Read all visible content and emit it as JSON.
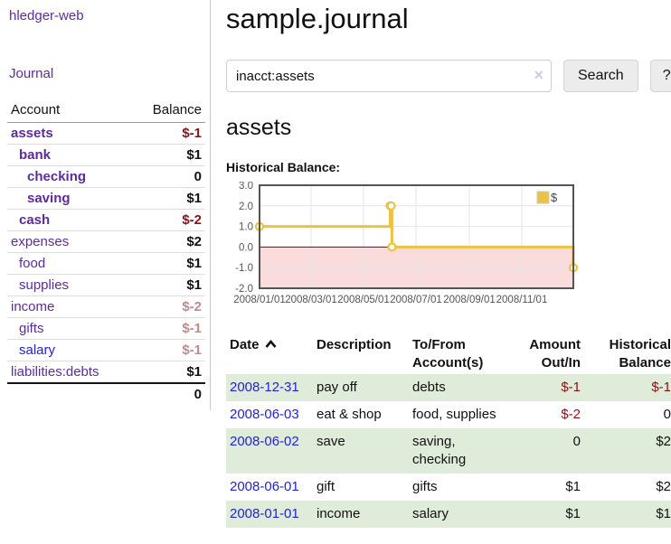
{
  "sidebar": {
    "brand": "hledger-web",
    "nav": {
      "journal_label": "Journal"
    },
    "table": {
      "headers": {
        "account": "Account",
        "balance": "Balance"
      },
      "rows": [
        {
          "label": "assets",
          "level": 1,
          "bold": true,
          "label_color": "purple",
          "balance": "$-1",
          "balance_tone": "neg-strong"
        },
        {
          "label": "bank",
          "level": 2,
          "bold": true,
          "label_color": "purple",
          "balance": "$1",
          "balance_tone": "pos"
        },
        {
          "label": "checking",
          "level": 3,
          "bold": true,
          "label_color": "purple",
          "balance": "0",
          "balance_tone": "pos"
        },
        {
          "label": "saving",
          "level": 3,
          "bold": true,
          "label_color": "purple",
          "balance": "$1",
          "balance_tone": "pos"
        },
        {
          "label": "cash",
          "level": 2,
          "bold": true,
          "label_color": "purple",
          "balance": "$-2",
          "balance_tone": "neg-strong"
        },
        {
          "label": "expenses",
          "level": 1,
          "bold": false,
          "label_color": "purple",
          "balance": "$2",
          "balance_tone": "pos"
        },
        {
          "label": "food",
          "level": 2,
          "bold": false,
          "label_color": "purple",
          "balance": "$1",
          "balance_tone": "pos"
        },
        {
          "label": "supplies",
          "level": 2,
          "bold": false,
          "label_color": "purple",
          "balance": "$1",
          "balance_tone": "pos"
        },
        {
          "label": "income",
          "level": 1,
          "bold": false,
          "label_color": "purple",
          "balance": "$-2",
          "balance_tone": "neg-muted"
        },
        {
          "label": "gifts",
          "level": 2,
          "bold": false,
          "label_color": "purple",
          "balance": "$-1",
          "balance_tone": "neg-muted"
        },
        {
          "label": "salary",
          "level": 2,
          "bold": false,
          "label_color": "blue",
          "balance": "$-1",
          "balance_tone": "neg-muted"
        },
        {
          "label": "liabilities:debts",
          "level": 1,
          "bold": false,
          "label_color": "purple",
          "balance": "$1",
          "balance_tone": "pos"
        }
      ],
      "total": "0"
    }
  },
  "header": {
    "title": "sample.journal"
  },
  "search": {
    "value": "inacct:assets",
    "clear_icon": "×",
    "button_label": "Search",
    "help_label": "?"
  },
  "main": {
    "account_title": "assets",
    "chart_title": "Historical Balance:"
  },
  "chart_data": {
    "type": "line",
    "step": true,
    "title": "Historical Balance:",
    "series": [
      {
        "name": "$",
        "color": "#edc240",
        "points": [
          [
            "2008-01-01",
            1
          ],
          [
            "2008-06-01",
            2
          ],
          [
            "2008-06-02",
            2
          ],
          [
            "2008-06-03",
            0
          ],
          [
            "2008-12-31",
            -1
          ]
        ]
      }
    ],
    "x_range": [
      "2008-01-01",
      "2008-12-31"
    ],
    "x_ticks": [
      "2008/01/01",
      "2008/03/01",
      "2008/05/01",
      "2008/07/01",
      "2008/09/01",
      "2008/11/01"
    ],
    "y_ticks": [
      3.0,
      2.0,
      1.0,
      0.0,
      -1.0,
      -2.0
    ],
    "ylim": [
      -2,
      3
    ],
    "legend": {
      "label": "$",
      "position": "top-right"
    },
    "grid": true,
    "negative_region_color": "#fbdcdc",
    "zero_line_color": "#8b0000",
    "grid_color": "#e6e6e6",
    "border_color": "#545454"
  },
  "register": {
    "headers": {
      "date": "Date",
      "description": "Description",
      "accounts": "To/From Account(s)",
      "amount": "Amount Out/In",
      "historical": "Historical Balance"
    },
    "sort_icon": "chevron-up",
    "rows": [
      {
        "date": "2008-12-31",
        "description": "pay off",
        "accounts": "debts",
        "amount": "$-1",
        "historical": "$-1"
      },
      {
        "date": "2008-06-03",
        "description": "eat & shop",
        "accounts": "food, supplies",
        "amount": "$-2",
        "historical": "0"
      },
      {
        "date": "2008-06-02",
        "description": "save",
        "accounts": "saving, checking",
        "amount": "0",
        "historical": "$2"
      },
      {
        "date": "2008-06-01",
        "description": "gift",
        "accounts": "gifts",
        "amount": "$1",
        "historical": "$2"
      },
      {
        "date": "2008-01-01",
        "description": "income",
        "accounts": "salary",
        "amount": "$1",
        "historical": "$1"
      }
    ]
  },
  "colors": {
    "link_purple": "#5e2b9e",
    "link_blue": "#2222dd",
    "negative_strong": "#8b1212",
    "negative_muted": "#c38a8a",
    "row_stripe_green": "#dfecd9",
    "chart_line_gold": "#edc240"
  }
}
